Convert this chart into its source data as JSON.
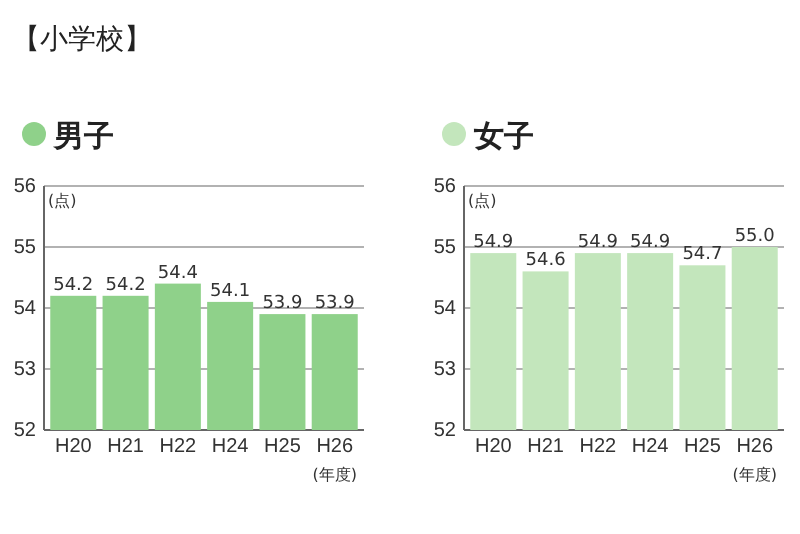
{
  "chart_data": [
    {
      "type": "bar",
      "title": "【小学校】",
      "subtitle": "男子",
      "ylabel": "(点)",
      "xlabel": "(年度)",
      "categories": [
        "H20",
        "H21",
        "H22",
        "H24",
        "H25",
        "H26"
      ],
      "series": [
        {
          "color": "#8fd18a",
          "values": [
            54.2,
            54.2,
            54.4,
            54.1,
            53.9,
            53.9
          ]
        }
      ],
      "ylim": [
        52,
        56
      ],
      "yticks": [
        52,
        53,
        54,
        55,
        56
      ],
      "grid": "y",
      "data_labels": true
    },
    {
      "type": "bar",
      "subtitle": "女子",
      "ylabel": "(点)",
      "xlabel": "(年度)",
      "categories": [
        "H20",
        "H21",
        "H22",
        "H24",
        "H25",
        "H26"
      ],
      "series": [
        {
          "color": "#c3e6bc",
          "values": [
            54.9,
            54.6,
            54.9,
            54.9,
            54.7,
            55.0
          ],
          "value_labels": [
            "54.9",
            "54.6",
            "54.9",
            "54.9",
            "54.7",
            "55.0"
          ]
        }
      ],
      "ylim": [
        52,
        56
      ],
      "yticks": [
        52,
        53,
        54,
        55,
        56
      ],
      "grid": "y"
    }
  ]
}
